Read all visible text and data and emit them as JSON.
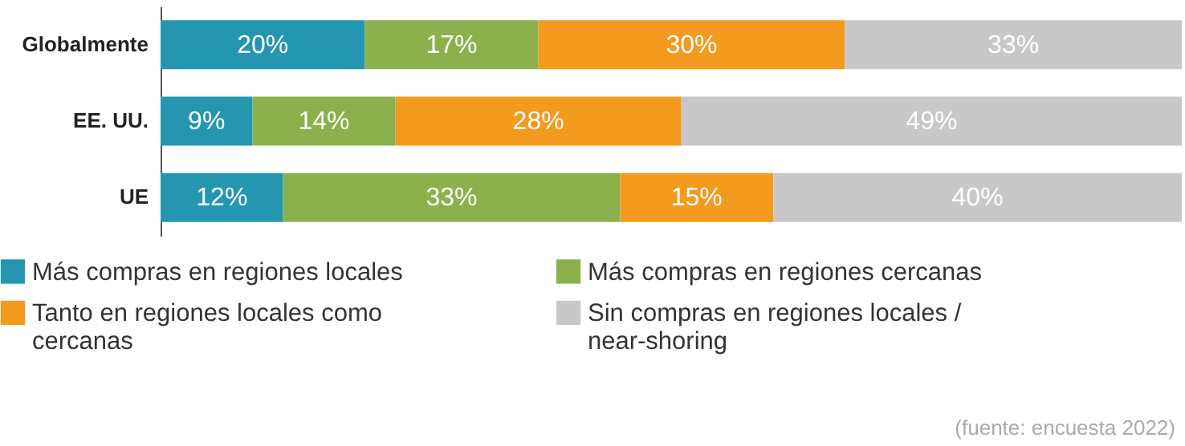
{
  "chart_data": {
    "type": "bar",
    "orientation": "horizontal",
    "stacked": true,
    "legend": "bottom",
    "categories": [
      "Globalmente",
      "EE. UU.",
      "UE"
    ],
    "series": [
      {
        "name": "Más compras en regiones locales",
        "color": "#2596b0",
        "values": [
          20,
          9,
          12
        ],
        "value_labels": [
          "20%",
          "9%",
          "12%"
        ]
      },
      {
        "name": "Más compras en regiones cercanas",
        "color": "#8ab14c",
        "values": [
          17,
          14,
          33
        ],
        "value_labels": [
          "17%",
          "14%",
          "33%"
        ]
      },
      {
        "name": "Tanto en regiones locales como cercanas",
        "color": "#f39a1f",
        "values": [
          30,
          28,
          15
        ],
        "value_labels": [
          "30%",
          "28%",
          "15%"
        ]
      },
      {
        "name": "Sin compras en regiones locales / near-shoring",
        "color": "#c8c8c8",
        "values": [
          33,
          49,
          40
        ],
        "value_labels": [
          "33%",
          "49%",
          "40%"
        ]
      }
    ],
    "annotations": [
      "(fuente: encuesta 2022)"
    ]
  }
}
